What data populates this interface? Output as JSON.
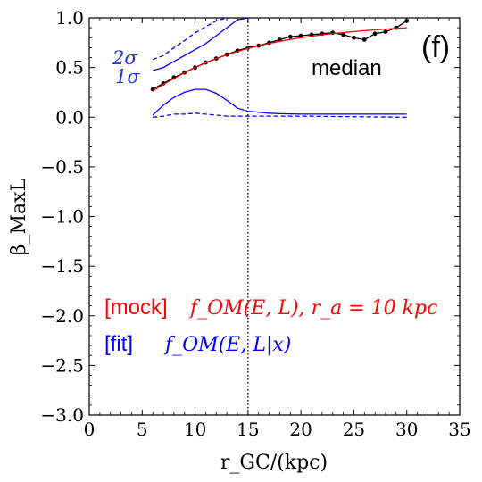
{
  "chart_data": {
    "type": "line",
    "panel_label": "(f)",
    "xlabel": "r_GC/(kpc)",
    "ylabel": "β_MaxL",
    "xlim": [
      0,
      35
    ],
    "ylim": [
      -3.0,
      1.0
    ],
    "xticks": [
      0,
      5,
      10,
      15,
      20,
      25,
      30,
      35
    ],
    "xtick_labels": [
      "0",
      "5",
      "10",
      "15",
      "20",
      "25",
      "30",
      "35"
    ],
    "yticks": [
      1.0,
      0.5,
      0.0,
      -0.5,
      -1.0,
      -1.5,
      -2.0,
      -2.5,
      -3.0
    ],
    "ytick_labels": [
      "1.0",
      "0.5",
      "0.0",
      "−0.5",
      "−1.0",
      "−1.5",
      "−2.0",
      "−2.5",
      "−3.0"
    ],
    "vline_x": 15,
    "series": [
      {
        "name": "median",
        "color": "#000000",
        "style": "solid",
        "markers": true,
        "x": [
          6,
          7,
          8,
          9,
          10,
          11,
          12,
          13,
          14,
          15,
          16,
          17,
          18,
          19,
          20,
          21,
          22,
          23,
          24,
          25,
          26,
          27,
          28,
          29,
          30
        ],
        "y": [
          0.28,
          0.34,
          0.4,
          0.45,
          0.5,
          0.55,
          0.59,
          0.63,
          0.67,
          0.7,
          0.72,
          0.75,
          0.78,
          0.81,
          0.82,
          0.83,
          0.84,
          0.85,
          0.83,
          0.8,
          0.78,
          0.84,
          0.86,
          0.9,
          0.97
        ]
      },
      {
        "name": "mock",
        "color": "#ff0000",
        "style": "solid",
        "markers": false,
        "x": [
          6,
          7,
          8,
          9,
          10,
          11,
          12,
          13,
          14,
          15,
          16,
          17,
          18,
          19,
          20,
          21,
          22,
          23,
          24,
          25,
          26,
          27,
          28,
          29,
          30
        ],
        "y": [
          0.265,
          0.329,
          0.39,
          0.448,
          0.5,
          0.547,
          0.59,
          0.628,
          0.662,
          0.692,
          0.719,
          0.743,
          0.764,
          0.783,
          0.8,
          0.815,
          0.829,
          0.841,
          0.852,
          0.862,
          0.871,
          0.879,
          0.887,
          0.894,
          0.9
        ]
      },
      {
        "name": "1σ upper",
        "color": "#0000ff",
        "style": "solid",
        "markers": false,
        "x": [
          6,
          7,
          8,
          9,
          10,
          11,
          12,
          13,
          14,
          15
        ],
        "y": [
          0.47,
          0.5,
          0.56,
          0.62,
          0.68,
          0.74,
          0.82,
          0.9,
          0.98,
          1.0
        ]
      },
      {
        "name": "2σ upper",
        "color": "#0000ff",
        "style": "dashed",
        "markers": false,
        "x": [
          6,
          7,
          8,
          9,
          10,
          11,
          12,
          13,
          14
        ],
        "y": [
          0.58,
          0.62,
          0.7,
          0.77,
          0.85,
          0.91,
          0.97,
          1.0,
          1.0
        ]
      },
      {
        "name": "1σ lower",
        "color": "#0000ff",
        "style": "solid",
        "markers": false,
        "x": [
          6,
          7,
          8,
          9,
          10,
          11,
          12,
          13,
          14,
          15,
          16,
          17,
          18,
          20,
          25,
          30
        ],
        "y": [
          0.02,
          0.12,
          0.2,
          0.25,
          0.28,
          0.28,
          0.24,
          0.17,
          0.09,
          0.06,
          0.05,
          0.04,
          0.035,
          0.03,
          0.03,
          0.03
        ]
      },
      {
        "name": "2σ lower",
        "color": "#0000ff",
        "style": "dashed",
        "markers": false,
        "x": [
          6,
          7,
          8,
          9,
          10,
          11,
          12,
          13,
          14,
          15,
          20,
          25,
          30
        ],
        "y": [
          0.0,
          0.01,
          0.03,
          0.03,
          0.04,
          0.03,
          0.02,
          0.01,
          0.01,
          0.01,
          0.01,
          0.005,
          0.0
        ]
      }
    ],
    "annotations": {
      "two_sigma": "2σ",
      "one_sigma": "1σ",
      "median": "median",
      "mock_tag": "[mock]",
      "mock_formula": "f_OM(E, L),  r_a = 10 kpc",
      "fit_tag": "[fit]",
      "fit_formula": "f_OM(E, L|x)"
    },
    "colors": {
      "axis": "#000000",
      "mock": "#ff0000",
      "fit": "#0000ff",
      "median": "#000000"
    }
  }
}
